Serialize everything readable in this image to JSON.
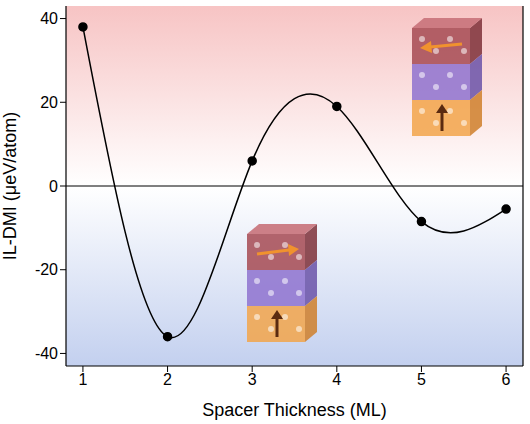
{
  "chart_data": {
    "type": "line",
    "x": [
      1,
      2,
      3,
      4,
      5,
      6
    ],
    "values": [
      38,
      -36,
      6,
      19,
      -8.5,
      -5.5
    ],
    "color": "#000000",
    "marker": "circle",
    "x_label": "Spacer Thickness (ML)",
    "y_label": "IL-DMI (μeV/atom)",
    "xlim": [
      0.8,
      6.2
    ],
    "ylim": [
      -43,
      43
    ],
    "xticks": [
      1,
      2,
      3,
      4,
      5,
      6
    ],
    "yticks": [
      -40,
      -20,
      0,
      20,
      40
    ]
  }
}
